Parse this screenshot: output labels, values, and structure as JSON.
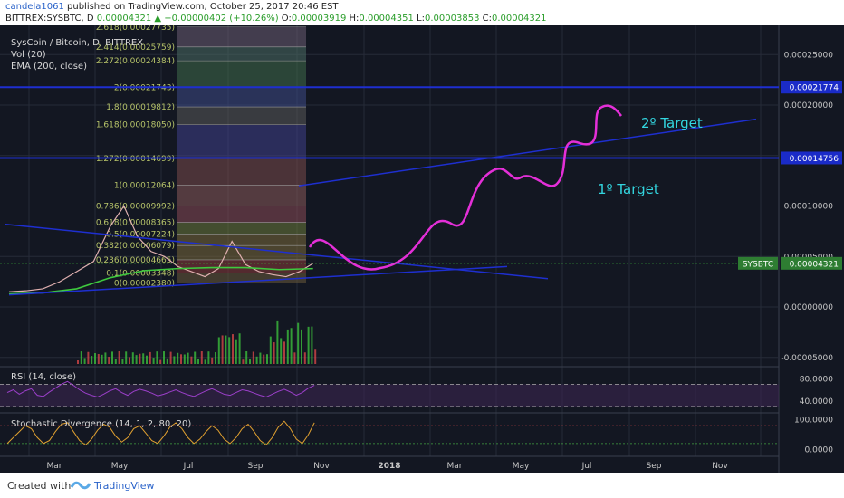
{
  "header": {
    "author": "candela1061",
    "published": " published on TradingView.com, October 25, 2017 20:46 EST",
    "symbol": "BITTREX:SYSBTC, D",
    "last_price": "0.00004321",
    "change": "+0.00000402 (+10.26%)",
    "o_label": "O:",
    "o_value": "0.00003919",
    "h_label": "H:",
    "h_value": "0.00004351",
    "l_label": "L:",
    "l_value": "0.00003853",
    "c_label": "C:",
    "c_value": "0.00004321"
  },
  "legend": {
    "title": "SysCoin / Bitcoin, D, BITTREX",
    "vol": "Vol (20)",
    "ema": "EMA (200, close)"
  },
  "annotations": {
    "target1": "1º Target",
    "target2": "2º Target"
  },
  "footer": {
    "created_with": "Created with",
    "brand": "TradingView"
  },
  "chart_data": [
    {
      "type": "line",
      "title": "SysCoin / Bitcoin, D, BITTREX",
      "xlabel": "",
      "ylabel": "",
      "x_ticks": [
        "Mar",
        "May",
        "Jul",
        "Sep",
        "Nov",
        "2018",
        "Mar",
        "May",
        "Jul",
        "Sep",
        "Nov"
      ],
      "y_ticks": [
        "0.00025000",
        "0.00020000",
        "0.00010000",
        "0.00005000",
        "0.00000000",
        "-0.00005000"
      ],
      "ylim": [
        -6e-05,
        0.00029
      ],
      "price_labels": [
        {
          "label": "",
          "value": 0.00021774,
          "text": "0.00021774"
        },
        {
          "label": "",
          "value": 0.00014756,
          "text": "0.00014756"
        },
        {
          "label": "SYSBTC",
          "value": 4.321e-05,
          "text": "0.00004321"
        }
      ],
      "fibonacci_levels": [
        {
          "ratio": "2.618",
          "value": 0.00027735,
          "text": "2.618(0.00027735)"
        },
        {
          "ratio": "2.414",
          "value": 0.00025759,
          "text": "2.414(0.00025759)"
        },
        {
          "ratio": "2.272",
          "value": 0.00024384,
          "text": "2.272(0.00024384)"
        },
        {
          "ratio": "2",
          "value": 0.00021743,
          "text": "2(0.00021743)"
        },
        {
          "ratio": "1.8",
          "value": 0.00019812,
          "text": "1.8(0.00019812)"
        },
        {
          "ratio": "1.618",
          "value": 0.0001805,
          "text": "1.618(0.00018050)"
        },
        {
          "ratio": "1.272",
          "value": 0.00014699,
          "text": "1.272(0.00014699)"
        },
        {
          "ratio": "1",
          "value": 0.00012064,
          "text": "1(0.00012064)"
        },
        {
          "ratio": "0.786",
          "value": 9.992e-05,
          "text": "0.786(0.00009992)"
        },
        {
          "ratio": "0.618",
          "value": 8.365e-05,
          "text": "0.618(0.00008365)"
        },
        {
          "ratio": "0.5",
          "value": 7.224e-05,
          "text": "0.5(0.00007224)"
        },
        {
          "ratio": "0.382",
          "value": 6.079e-05,
          "text": "0.382(0.00006079)"
        },
        {
          "ratio": "0.236",
          "value": 4.665e-05,
          "text": "0.236(0.00004665)"
        },
        {
          "ratio": "0.1",
          "value": 3.348e-05,
          "text": "0.1(0.00003348)"
        },
        {
          "ratio": "0",
          "value": 2.38e-05,
          "text": "0(0.00002380)"
        }
      ],
      "series": [
        {
          "name": "SYSBTC",
          "color": "#c8c8c8",
          "x": [
            0,
            5,
            10,
            15,
            20,
            25,
            30,
            34,
            38,
            42,
            46,
            50,
            54,
            58,
            62,
            66,
            70,
            74,
            78,
            82,
            86,
            90
          ],
          "values": [
            1.5e-05,
            1.6e-05,
            1.8e-05,
            2.5e-05,
            3.5e-05,
            4.5e-05,
            8e-05,
            0.0001,
            7e-05,
            5.5e-05,
            5e-05,
            4e-05,
            3.5e-05,
            3e-05,
            3.8e-05,
            6.5e-05,
            4.2e-05,
            3.5e-05,
            3.2e-05,
            3e-05,
            3.5e-05,
            4.32e-05
          ]
        },
        {
          "name": "EMA (200, close)",
          "color": "#3ec93e",
          "x": [
            0,
            10,
            20,
            30,
            40,
            50,
            60,
            70,
            80,
            90
          ],
          "values": [
            1.3e-05,
            1.4e-05,
            1.8e-05,
            2.9e-05,
            3.6e-05,
            3.8e-05,
            3.9e-05,
            3.9e-05,
            3.7e-05,
            3.8e-05
          ]
        }
      ]
    },
    {
      "type": "line",
      "title": "RSI (14, close)",
      "y_ticks": [
        "80.0000",
        "40.0000"
      ],
      "ylim": [
        20,
        100
      ],
      "series": [
        {
          "name": "RSI",
          "color": "#9b3fc9",
          "values": [
            55,
            60,
            52,
            58,
            62,
            50,
            48,
            56,
            63,
            70,
            75,
            68,
            60,
            54,
            50,
            47,
            52,
            58,
            62,
            55,
            50,
            57,
            61,
            58,
            54,
            49,
            52,
            56,
            60,
            55,
            51,
            48,
            53,
            58,
            62,
            57,
            52,
            50,
            55,
            60,
            58,
            54,
            50,
            47,
            52,
            57,
            61,
            56,
            50,
            55,
            63,
            68
          ]
        }
      ]
    },
    {
      "type": "line",
      "title": "Stochastic Divergence (14, 1, 2, 80, 20)",
      "y_ticks": [
        "100.0000",
        "0.0000"
      ],
      "ylim": [
        -20,
        120
      ],
      "series": [
        {
          "name": "Stochastic",
          "color": "#e0a030",
          "values": [
            20,
            40,
            60,
            80,
            70,
            40,
            20,
            30,
            60,
            85,
            90,
            60,
            30,
            15,
            35,
            65,
            85,
            75,
            45,
            25,
            40,
            70,
            80,
            55,
            30,
            20,
            45,
            75,
            90,
            70,
            40,
            20,
            35,
            60,
            80,
            65,
            35,
            20,
            40,
            70,
            85,
            60,
            30,
            15,
            40,
            75,
            95,
            70,
            35,
            20,
            50,
            90
          ]
        }
      ]
    }
  ],
  "colors": {
    "background": "#131722",
    "grid": "#262b38",
    "trendline": "#1e2fd0",
    "drawing": "#e42fd8",
    "annotation_text": "#33d6e0",
    "ema": "#3ec93e",
    "up": "#3ec93e",
    "down": "#e24a4a"
  }
}
